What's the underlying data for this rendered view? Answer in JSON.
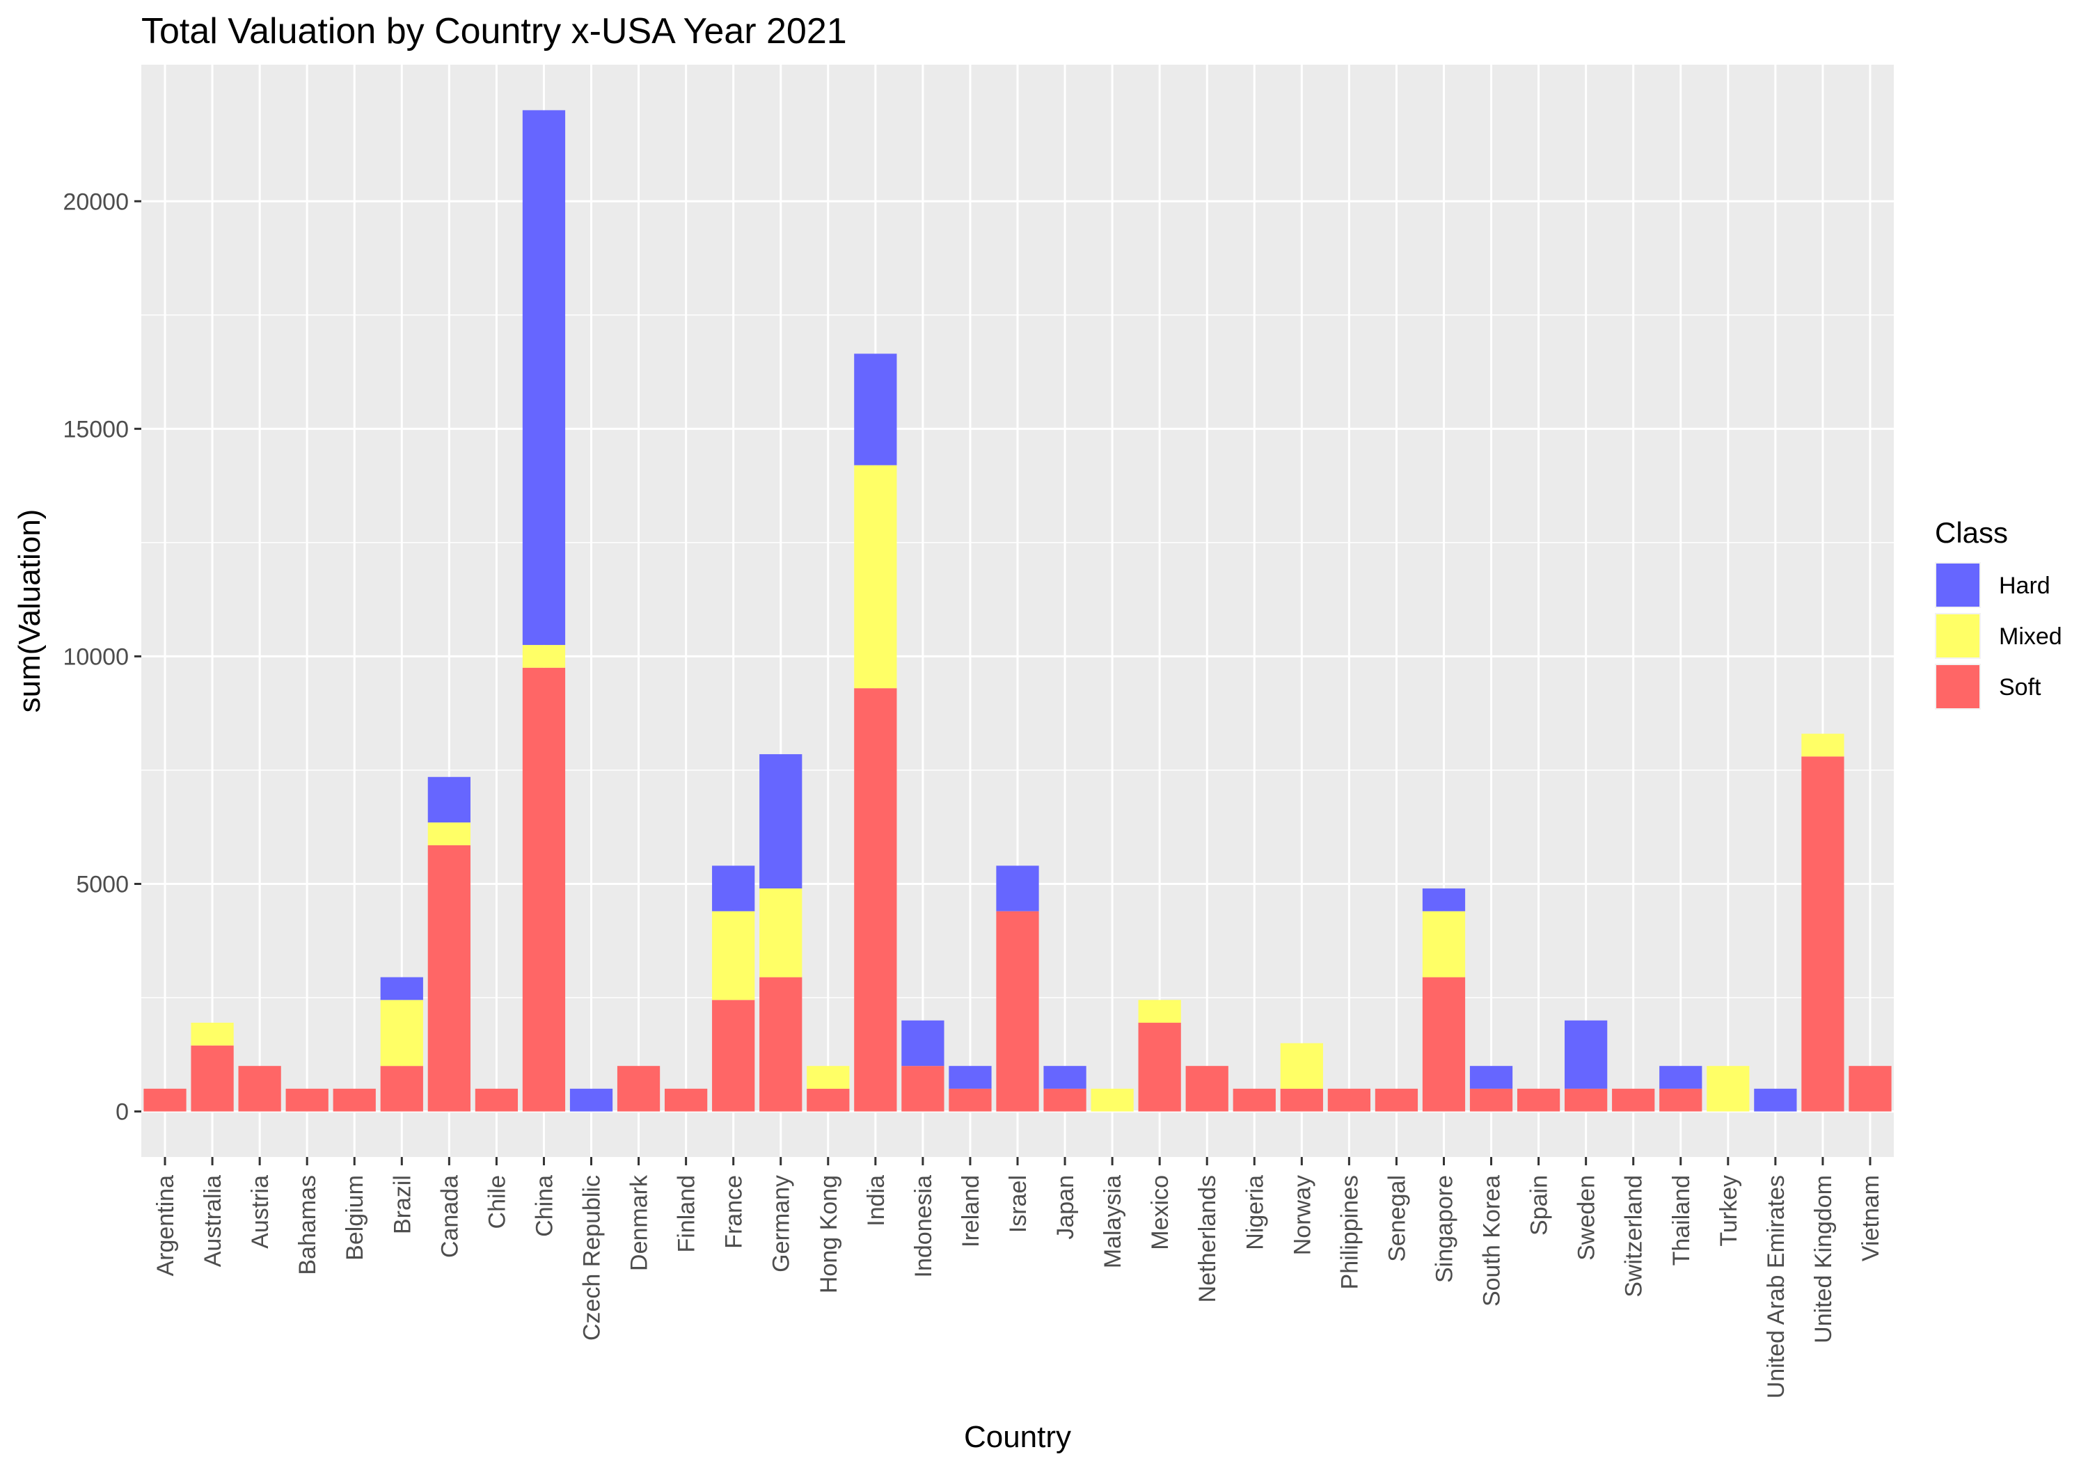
{
  "chart_data": {
    "type": "bar",
    "stacked": true,
    "title": "Total Valuation by Country x-USA Year 2021",
    "xlabel": "Country",
    "ylabel": "sum(Valuation)",
    "ylim": [
      -1000,
      23000
    ],
    "yticks": [
      0,
      5000,
      10000,
      15000,
      20000
    ],
    "grid": true,
    "legend": {
      "title": "Class",
      "position": "right"
    },
    "categories": [
      "Argentina",
      "Australia",
      "Austria",
      "Bahamas",
      "Belgium",
      "Brazil",
      "Canada",
      "Chile",
      "China",
      "Czech Republic",
      "Denmark",
      "Finland",
      "France",
      "Germany",
      "Hong Kong",
      "India",
      "Indonesia",
      "Ireland",
      "Israel",
      "Japan",
      "Malaysia",
      "Mexico",
      "Netherlands",
      "Nigeria",
      "Norway",
      "Philippines",
      "Senegal",
      "Singapore",
      "South Korea",
      "Spain",
      "Sweden",
      "Switzerland",
      "Thailand",
      "Turkey",
      "United Arab Emirates",
      "United Kingdom",
      "Vietnam"
    ],
    "series": [
      {
        "name": "Hard",
        "color": "#6666ff",
        "values": [
          0,
          0,
          0,
          0,
          0,
          500,
          1000,
          0,
          11750,
          500,
          0,
          0,
          1000,
          2950,
          0,
          2450,
          1000,
          500,
          1000,
          500,
          0,
          0,
          0,
          0,
          0,
          0,
          0,
          500,
          500,
          0,
          1500,
          0,
          500,
          0,
          500,
          0,
          0
        ]
      },
      {
        "name": "Mixed",
        "color": "#ffff66",
        "values": [
          0,
          500,
          0,
          0,
          0,
          1450,
          500,
          0,
          500,
          0,
          0,
          0,
          1950,
          1950,
          500,
          4900,
          0,
          0,
          0,
          0,
          500,
          500,
          0,
          0,
          1000,
          0,
          0,
          1450,
          0,
          0,
          0,
          0,
          0,
          1000,
          0,
          500,
          0
        ]
      },
      {
        "name": "Soft",
        "color": "#ff6666",
        "values": [
          500,
          1450,
          1000,
          500,
          500,
          1000,
          5850,
          500,
          9750,
          0,
          1000,
          500,
          2450,
          2950,
          500,
          9300,
          1000,
          500,
          4400,
          500,
          0,
          1950,
          1000,
          500,
          500,
          500,
          500,
          2950,
          500,
          500,
          500,
          500,
          500,
          0,
          0,
          7800,
          1000
        ]
      }
    ]
  }
}
